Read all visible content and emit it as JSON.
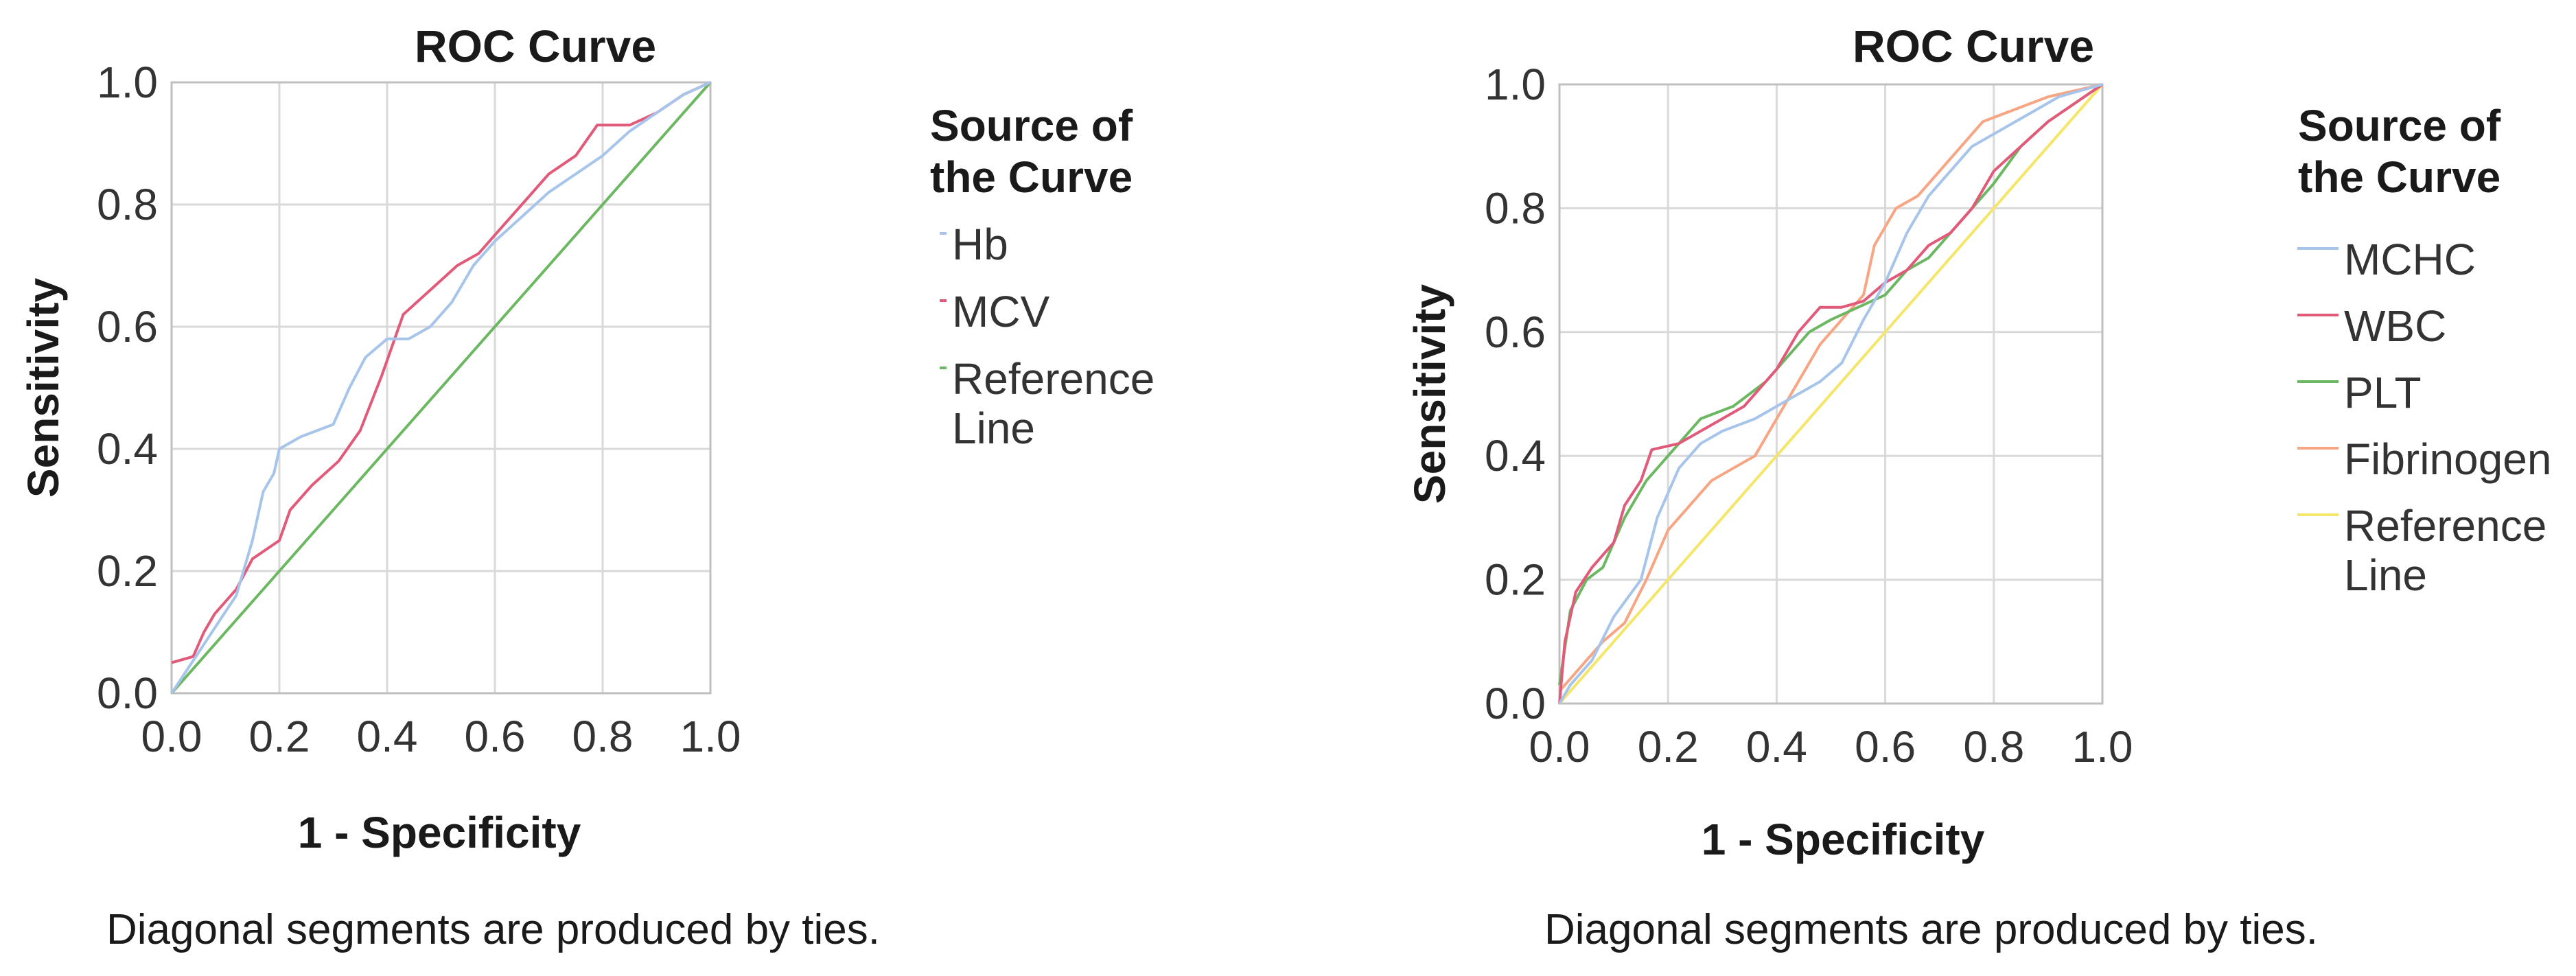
{
  "chart_data": [
    {
      "type": "line",
      "title": "ROC Curve",
      "xlabel": "1 - Specificity",
      "ylabel": "Sensitivity",
      "xlim": [
        0,
        1
      ],
      "ylim": [
        0,
        1
      ],
      "ticks": [
        "0.0",
        "0.2",
        "0.4",
        "0.6",
        "0.8",
        "1.0"
      ],
      "legend_title": [
        "Source of",
        "the Curve"
      ],
      "footnote": "Diagonal segments are produced by ties.",
      "series": [
        {
          "name": "Hb",
          "color": "#a7c4ea",
          "legend_lines": [
            "Hb"
          ],
          "points": [
            [
              0,
              0
            ],
            [
              0.03,
              0.04
            ],
            [
              0.06,
              0.08
            ],
            [
              0.09,
              0.12
            ],
            [
              0.12,
              0.16
            ],
            [
              0.15,
              0.25
            ],
            [
              0.17,
              0.33
            ],
            [
              0.19,
              0.36
            ],
            [
              0.2,
              0.4
            ],
            [
              0.24,
              0.42
            ],
            [
              0.3,
              0.44
            ],
            [
              0.33,
              0.5
            ],
            [
              0.36,
              0.55
            ],
            [
              0.4,
              0.58
            ],
            [
              0.44,
              0.58
            ],
            [
              0.48,
              0.6
            ],
            [
              0.52,
              0.64
            ],
            [
              0.56,
              0.7
            ],
            [
              0.6,
              0.74
            ],
            [
              0.65,
              0.78
            ],
            [
              0.7,
              0.82
            ],
            [
              0.75,
              0.85
            ],
            [
              0.8,
              0.88
            ],
            [
              0.85,
              0.92
            ],
            [
              0.9,
              0.95
            ],
            [
              0.95,
              0.98
            ],
            [
              1,
              1
            ]
          ]
        },
        {
          "name": "MCV",
          "color": "#e25a79",
          "legend_lines": [
            "MCV"
          ],
          "points": [
            [
              0,
              0.05
            ],
            [
              0.04,
              0.06
            ],
            [
              0.06,
              0.1
            ],
            [
              0.08,
              0.13
            ],
            [
              0.12,
              0.17
            ],
            [
              0.15,
              0.22
            ],
            [
              0.2,
              0.25
            ],
            [
              0.22,
              0.3
            ],
            [
              0.26,
              0.34
            ],
            [
              0.31,
              0.38
            ],
            [
              0.35,
              0.43
            ],
            [
              0.39,
              0.52
            ],
            [
              0.43,
              0.62
            ],
            [
              0.48,
              0.66
            ],
            [
              0.53,
              0.7
            ],
            [
              0.57,
              0.72
            ],
            [
              0.61,
              0.76
            ],
            [
              0.65,
              0.8
            ],
            [
              0.7,
              0.85
            ],
            [
              0.75,
              0.88
            ],
            [
              0.79,
              0.93
            ],
            [
              0.85,
              0.93
            ],
            [
              0.9,
              0.95
            ],
            [
              0.95,
              0.98
            ],
            [
              1,
              1
            ]
          ]
        },
        {
          "name": "Reference Line",
          "color": "#6cb761",
          "legend_lines": [
            "Reference",
            "Line"
          ],
          "points": [
            [
              0,
              0
            ],
            [
              1,
              1
            ]
          ]
        }
      ]
    },
    {
      "type": "line",
      "title": "ROC Curve",
      "xlabel": "1 - Specificity",
      "ylabel": "Sensitivity",
      "xlim": [
        0,
        1
      ],
      "ylim": [
        0,
        1
      ],
      "ticks": [
        "0.0",
        "0.2",
        "0.4",
        "0.6",
        "0.8",
        "1.0"
      ],
      "legend_title": [
        "Source of",
        "the Curve"
      ],
      "footnote": "Diagonal segments are produced by ties.",
      "series": [
        {
          "name": "MCHC",
          "color": "#a7c4ea",
          "legend_lines": [
            "MCHC"
          ],
          "points": [
            [
              0,
              0
            ],
            [
              0.02,
              0.03
            ],
            [
              0.06,
              0.07
            ],
            [
              0.1,
              0.14
            ],
            [
              0.15,
              0.2
            ],
            [
              0.18,
              0.3
            ],
            [
              0.22,
              0.38
            ],
            [
              0.26,
              0.42
            ],
            [
              0.3,
              0.44
            ],
            [
              0.36,
              0.46
            ],
            [
              0.42,
              0.49
            ],
            [
              0.48,
              0.52
            ],
            [
              0.52,
              0.55
            ],
            [
              0.56,
              0.62
            ],
            [
              0.6,
              0.68
            ],
            [
              0.64,
              0.76
            ],
            [
              0.68,
              0.82
            ],
            [
              0.72,
              0.86
            ],
            [
              0.76,
              0.9
            ],
            [
              0.8,
              0.92
            ],
            [
              0.86,
              0.95
            ],
            [
              0.92,
              0.98
            ],
            [
              1,
              1
            ]
          ]
        },
        {
          "name": "WBC",
          "color": "#e25a79",
          "legend_lines": [
            "WBC"
          ],
          "points": [
            [
              0,
              0
            ],
            [
              0.01,
              0.1
            ],
            [
              0.03,
              0.18
            ],
            [
              0.06,
              0.22
            ],
            [
              0.1,
              0.26
            ],
            [
              0.12,
              0.32
            ],
            [
              0.15,
              0.36
            ],
            [
              0.17,
              0.41
            ],
            [
              0.22,
              0.42
            ],
            [
              0.28,
              0.45
            ],
            [
              0.34,
              0.48
            ],
            [
              0.4,
              0.54
            ],
            [
              0.44,
              0.6
            ],
            [
              0.48,
              0.64
            ],
            [
              0.52,
              0.64
            ],
            [
              0.56,
              0.65
            ],
            [
              0.6,
              0.68
            ],
            [
              0.64,
              0.7
            ],
            [
              0.68,
              0.74
            ],
            [
              0.72,
              0.76
            ],
            [
              0.76,
              0.8
            ],
            [
              0.8,
              0.86
            ],
            [
              0.85,
              0.9
            ],
            [
              0.9,
              0.94
            ],
            [
              0.95,
              0.97
            ],
            [
              1,
              1
            ]
          ]
        },
        {
          "name": "PLT",
          "color": "#6cb761",
          "legend_lines": [
            "PLT"
          ],
          "points": [
            [
              0,
              0.03
            ],
            [
              0.02,
              0.15
            ],
            [
              0.05,
              0.2
            ],
            [
              0.08,
              0.22
            ],
            [
              0.12,
              0.3
            ],
            [
              0.16,
              0.36
            ],
            [
              0.2,
              0.4
            ],
            [
              0.26,
              0.46
            ],
            [
              0.32,
              0.48
            ],
            [
              0.38,
              0.52
            ],
            [
              0.42,
              0.56
            ],
            [
              0.46,
              0.6
            ],
            [
              0.5,
              0.62
            ],
            [
              0.55,
              0.64
            ],
            [
              0.6,
              0.66
            ],
            [
              0.64,
              0.7
            ],
            [
              0.68,
              0.72
            ],
            [
              0.72,
              0.76
            ],
            [
              0.76,
              0.8
            ],
            [
              0.8,
              0.84
            ],
            [
              0.85,
              0.9
            ],
            [
              0.9,
              0.94
            ],
            [
              0.95,
              0.97
            ],
            [
              1,
              1
            ]
          ]
        },
        {
          "name": "Fibrinogen",
          "color": "#f7a582",
          "legend_lines": [
            "Fibrinogen"
          ],
          "points": [
            [
              0,
              0.02
            ],
            [
              0.04,
              0.06
            ],
            [
              0.08,
              0.1
            ],
            [
              0.12,
              0.13
            ],
            [
              0.16,
              0.2
            ],
            [
              0.2,
              0.28
            ],
            [
              0.24,
              0.32
            ],
            [
              0.28,
              0.36
            ],
            [
              0.32,
              0.38
            ],
            [
              0.36,
              0.4
            ],
            [
              0.4,
              0.46
            ],
            [
              0.44,
              0.52
            ],
            [
              0.48,
              0.58
            ],
            [
              0.52,
              0.62
            ],
            [
              0.56,
              0.66
            ],
            [
              0.58,
              0.74
            ],
            [
              0.62,
              0.8
            ],
            [
              0.66,
              0.82
            ],
            [
              0.7,
              0.86
            ],
            [
              0.74,
              0.9
            ],
            [
              0.78,
              0.94
            ],
            [
              0.84,
              0.96
            ],
            [
              0.9,
              0.98
            ],
            [
              1,
              1
            ]
          ]
        },
        {
          "name": "Reference Line",
          "color": "#f5e66a",
          "legend_lines": [
            "Reference",
            "Line"
          ],
          "points": [
            [
              0,
              0
            ],
            [
              1,
              1
            ]
          ]
        }
      ]
    }
  ]
}
